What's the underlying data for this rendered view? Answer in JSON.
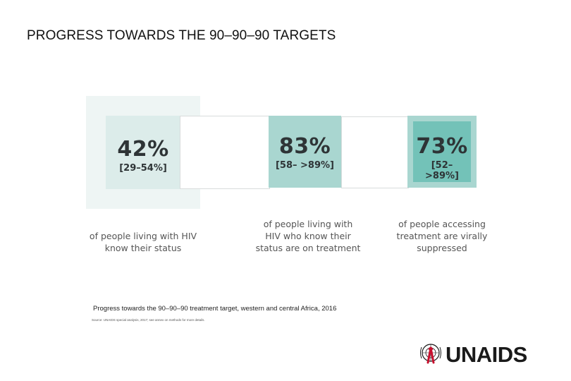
{
  "slide": {
    "title": "PROGRESS TOWARDS THE 90–90–90 TARGETS"
  },
  "targets": [
    {
      "percent": "42%",
      "range": "[29–54%]",
      "caption_lines": [
        "of people living with HIV",
        "know their status"
      ]
    },
    {
      "percent": "83%",
      "range": "[58– >89%]",
      "caption_lines": [
        "of people living with",
        "HIV who know their",
        "status are on treatment"
      ]
    },
    {
      "percent": "73%",
      "range": "[52– >89%]",
      "caption_lines": [
        "of people accessing",
        "treatment are virally",
        "suppressed"
      ]
    }
  ],
  "figure": {
    "caption": "Progress towards the 90–90–90 treatment target, western and central Africa, 2016",
    "source": "Source: UNAIDS special analysis, 2017; see annex on methods for more details."
  },
  "logo": {
    "text": "UNAIDS"
  },
  "colors": {
    "panel_1_bg": "#eef5f4",
    "card_1_bg": "#dcecea",
    "panel_2_bg": "#dcecea",
    "card_2_bg": "#a9d6d0",
    "panel_3_bg": "#a9d6d0",
    "card_3_bg": "#73c2b8",
    "stat_text": "#2e3436",
    "logo_ribbon": "#c8102e"
  }
}
